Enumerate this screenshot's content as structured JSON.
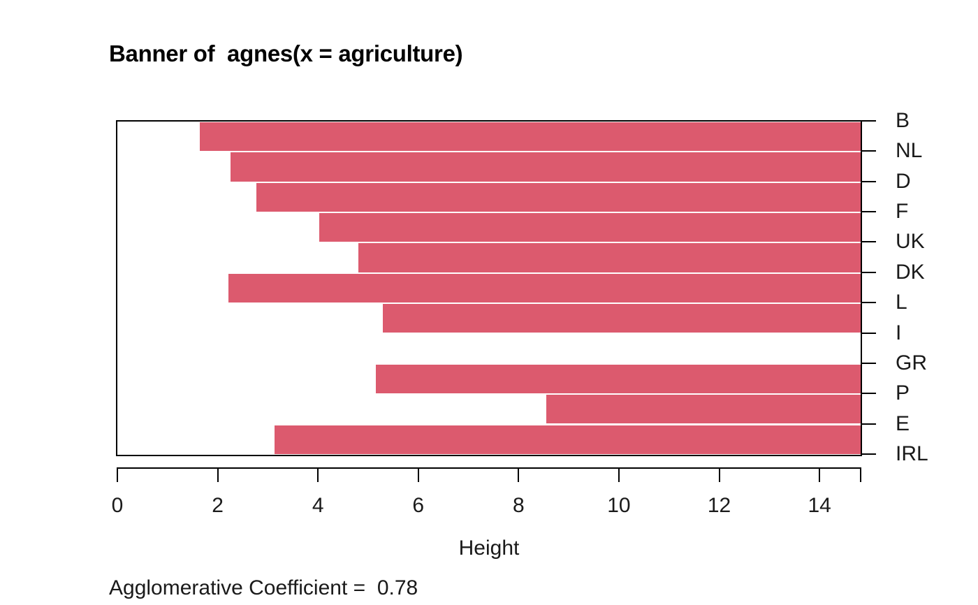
{
  "colors": {
    "bar": "#dc5a6e",
    "axis": "#000000",
    "text": "#1a1a1a",
    "background": "#ffffff"
  },
  "chart_data": {
    "type": "bar",
    "variant": "agnes-banner",
    "title": "Banner of  agnes(x = agriculture)",
    "xlabel": "Height",
    "annotation": "Agglomerative Coefficient =  0.78",
    "labels": [
      "B",
      "NL",
      "D",
      "F",
      "UK",
      "DK",
      "L",
      "I",
      "GR",
      "P",
      "E",
      "IRL"
    ],
    "bars_between": [
      [
        "B",
        "NL"
      ],
      [
        "NL",
        "D"
      ],
      [
        "D",
        "F"
      ],
      [
        "F",
        "UK"
      ],
      [
        "UK",
        "DK"
      ],
      [
        "DK",
        "L"
      ],
      [
        "L",
        "I"
      ],
      [
        "I",
        "GR"
      ],
      [
        "GR",
        "P"
      ],
      [
        "P",
        "E"
      ],
      [
        "E",
        "IRL"
      ]
    ],
    "merge_heights": [
      1.65,
      2.25,
      2.77,
      4.03,
      4.81,
      2.22,
      5.29,
      14.82,
      5.16,
      8.55,
      3.14
    ],
    "x_ticks": [
      0,
      2,
      4,
      6,
      8,
      10,
      12,
      14
    ],
    "xlim": [
      0,
      14.82
    ],
    "grid": false,
    "legend": "none",
    "bar_direction": "bars extend from merge height to right edge (max)"
  }
}
